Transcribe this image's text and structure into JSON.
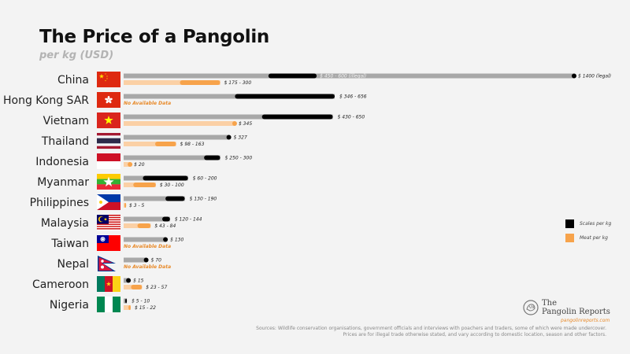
{
  "chart_data": {
    "type": "bar",
    "title": "The Price of a Pangolin",
    "subtitle": "per kg (USD)",
    "xlim": [
      0,
      1400
    ],
    "legend_position": "right",
    "legend": [
      {
        "name": "Scales per kg",
        "color": "#000000"
      },
      {
        "name": "Meat per kg",
        "color": "#f7a34b"
      }
    ],
    "countries": [
      {
        "name": "China",
        "flag": "china",
        "scales": {
          "min": 450,
          "max": 600,
          "label": "$ 450 - 600 (illegal)",
          "legal": 1400,
          "legal_label": "$ 1400 (legal)"
        },
        "meat": {
          "min": 175,
          "max": 300,
          "label": "$ 175 - 300"
        }
      },
      {
        "name": "Hong Kong SAR",
        "flag": "hongkong",
        "scales": {
          "min": 346,
          "max": 656,
          "label": "$ 346 - 656"
        },
        "meat": null,
        "meat_note": "No Available Data"
      },
      {
        "name": "Vietnam",
        "flag": "vietnam",
        "scales": {
          "min": 430,
          "max": 650,
          "label": "$ 430 - 650"
        },
        "meat": {
          "min": 345,
          "max": 345,
          "label": "$ 345"
        }
      },
      {
        "name": "Thailand",
        "flag": "thailand",
        "scales": {
          "min": 327,
          "max": 327,
          "label": "$ 327"
        },
        "meat": {
          "min": 98,
          "max": 163,
          "label": "$ 98 - 163"
        }
      },
      {
        "name": "Indonesia",
        "flag": "indonesia",
        "scales": {
          "min": 250,
          "max": 300,
          "label": "$ 250 - 300"
        },
        "meat": {
          "min": 20,
          "max": 20,
          "label": "$ 20"
        }
      },
      {
        "name": "Myanmar",
        "flag": "myanmar",
        "scales": {
          "min": 60,
          "max": 200,
          "label": "$ 60 - 200"
        },
        "meat": {
          "min": 30,
          "max": 100,
          "label": "$ 30 - 100"
        }
      },
      {
        "name": "Philippines",
        "flag": "philippines",
        "scales": {
          "min": 130,
          "max": 190,
          "label": "$ 130 - 190"
        },
        "meat": {
          "min": 3,
          "max": 5,
          "label": "$ 3 - 5"
        }
      },
      {
        "name": "Malaysia",
        "flag": "malaysia",
        "scales": {
          "min": 120,
          "max": 144,
          "label": "$ 120 - 144"
        },
        "meat": {
          "min": 43,
          "max": 84,
          "label": "$ 43 - 84"
        }
      },
      {
        "name": "Taiwan",
        "flag": "taiwan",
        "scales": {
          "min": 130,
          "max": 130,
          "label": "$ 130"
        },
        "meat": null,
        "meat_note": "No Available Data"
      },
      {
        "name": "Nepal",
        "flag": "nepal",
        "scales": {
          "min": 70,
          "max": 70,
          "label": "$ 70"
        },
        "meat": null,
        "meat_note": "No Available Data"
      },
      {
        "name": "Cameroon",
        "flag": "cameroon",
        "scales": {
          "min": 15,
          "max": 15,
          "label": "$ 15"
        },
        "meat": {
          "min": 23,
          "max": 57,
          "label": "$ 23 - 57"
        }
      },
      {
        "name": "Nigeria",
        "flag": "nigeria",
        "scales": {
          "min": 5,
          "max": 10,
          "label": "$ 5 - 10"
        },
        "meat": {
          "min": 15,
          "max": 22,
          "label": "$ 15 - 22"
        }
      }
    ]
  },
  "colors": {
    "scales_range": "#000000",
    "scales_base": "#a8a8a8",
    "meat_range": "#f7a34b",
    "meat_base": "#fbd0a5",
    "no_data": "#e88a2a"
  },
  "logo": {
    "name_line1": "The",
    "name_line2": "Pangolin Reports",
    "url": "pangolinreports.com",
    "icon": "pangolin-icon"
  },
  "sources": {
    "line1": "Sources:  Wildlife conservation organisations, government officials and interviews with poachers and traders,  some of which were made undercover.",
    "line2": "Prices are for illegal trade otherwise stated, and vary according to domestic location, season and other factors."
  }
}
